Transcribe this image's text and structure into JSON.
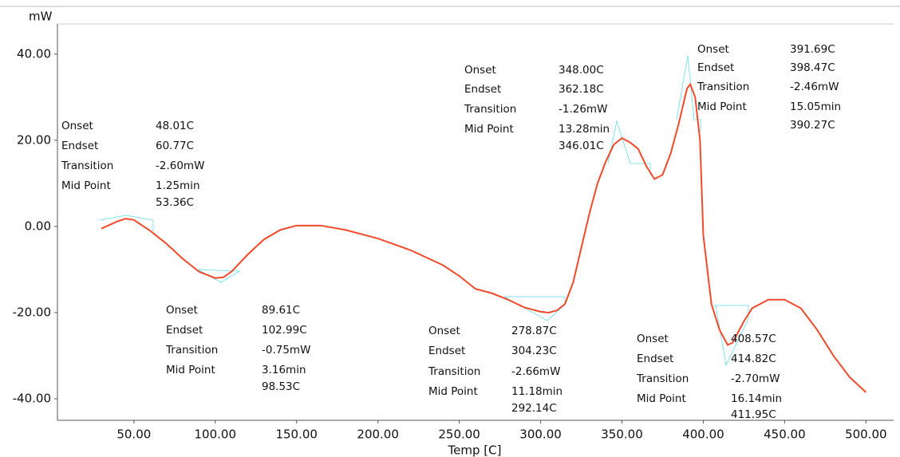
{
  "chart_data": {
    "type": "line",
    "y_label": "mW",
    "x_label": "Temp  [C]",
    "xlim": [
      3,
      517
    ],
    "ylim": [
      -45,
      47
    ],
    "xticks": [
      {
        "value": 50,
        "label": "50.00"
      },
      {
        "value": 100,
        "label": "100.00"
      },
      {
        "value": 150,
        "label": "150.00"
      },
      {
        "value": 200,
        "label": "200.00"
      },
      {
        "value": 250,
        "label": "250.00"
      },
      {
        "value": 300,
        "label": "300.00"
      },
      {
        "value": 350,
        "label": "350.00"
      },
      {
        "value": 400,
        "label": "400.00"
      },
      {
        "value": 450,
        "label": "450.00"
      },
      {
        "value": 500,
        "label": "500.00"
      }
    ],
    "yticks": [
      {
        "value": 40,
        "label": "40.00"
      },
      {
        "value": 20,
        "label": "20.00"
      },
      {
        "value": 0,
        "label": "0.00"
      },
      {
        "value": -20,
        "label": "-20.00"
      },
      {
        "value": -40,
        "label": "-40.00"
      }
    ],
    "series": [
      {
        "color": "#f04a2a",
        "x": [
          30,
          40,
          45,
          50,
          60,
          70,
          80,
          90,
          100,
          105,
          110,
          120,
          130,
          140,
          150,
          165,
          180,
          200,
          220,
          240,
          250,
          260,
          270,
          280,
          290,
          300,
          305,
          310,
          315,
          320,
          325,
          330,
          335,
          340,
          345,
          350,
          355,
          360,
          365,
          370,
          375,
          380,
          385,
          390,
          392,
          395,
          398,
          400,
          405,
          410,
          415,
          418,
          425,
          430,
          440,
          450,
          460,
          470,
          480,
          490,
          500
        ],
        "values": [
          -0.5,
          1.2,
          1.8,
          1.5,
          -1,
          -4,
          -7.5,
          -10.5,
          -12,
          -11.8,
          -10.5,
          -6.5,
          -3,
          -0.8,
          0.2,
          0.2,
          -0.8,
          -2.8,
          -5.5,
          -9,
          -11.5,
          -14.5,
          -15.5,
          -17,
          -18.8,
          -19.8,
          -20,
          -19.5,
          -18,
          -13,
          -5,
          3,
          10,
          15,
          19,
          20.5,
          19.5,
          18,
          14,
          11,
          12,
          17,
          24,
          32,
          33,
          30,
          20,
          -2,
          -18,
          -24,
          -27.5,
          -27,
          -22,
          -19,
          -17,
          -17,
          -19,
          -24,
          -30,
          -35,
          -38.5
        ]
      }
    ],
    "annotations": [
      {
        "rows": [
          [
            "Onset",
            "48.01C"
          ],
          [
            "Endset",
            "60.77C"
          ],
          [
            "Transition",
            "-2.60mW"
          ],
          [
            "Mid Point",
            "1.25min"
          ]
        ],
        "extra": "53.36C"
      },
      {
        "rows": [
          [
            "Onset",
            "89.61C"
          ],
          [
            "Endset",
            "102.99C"
          ],
          [
            "Transition",
            "-0.75mW"
          ],
          [
            "Mid Point",
            "3.16min"
          ]
        ],
        "extra": "98.53C"
      },
      {
        "rows": [
          [
            "Onset",
            "278.87C"
          ],
          [
            "Endset",
            "304.23C"
          ],
          [
            "Transition",
            "-2.66mW"
          ],
          [
            "Mid Point",
            "11.18min"
          ]
        ],
        "extra": "292.14C"
      },
      {
        "rows": [
          [
            "Onset",
            "348.00C"
          ],
          [
            "Endset",
            "362.18C"
          ],
          [
            "Transition",
            "-1.26mW"
          ],
          [
            "Mid Point",
            "13.28min"
          ]
        ],
        "extra": "346.01C"
      },
      {
        "rows": [
          [
            "Onset",
            "391.69C"
          ],
          [
            "Endset",
            "398.47C"
          ],
          [
            "Transition",
            "-2.46mW"
          ],
          [
            "Mid Point",
            "15.05min"
          ]
        ],
        "extra": "390.27C"
      },
      {
        "rows": [
          [
            "Onset",
            "408.57C"
          ],
          [
            "Endset",
            "414.82C"
          ],
          [
            "Transition",
            "-2.70mW"
          ],
          [
            "Mid Point",
            "16.14min"
          ]
        ],
        "extra": "411.95C"
      }
    ]
  }
}
